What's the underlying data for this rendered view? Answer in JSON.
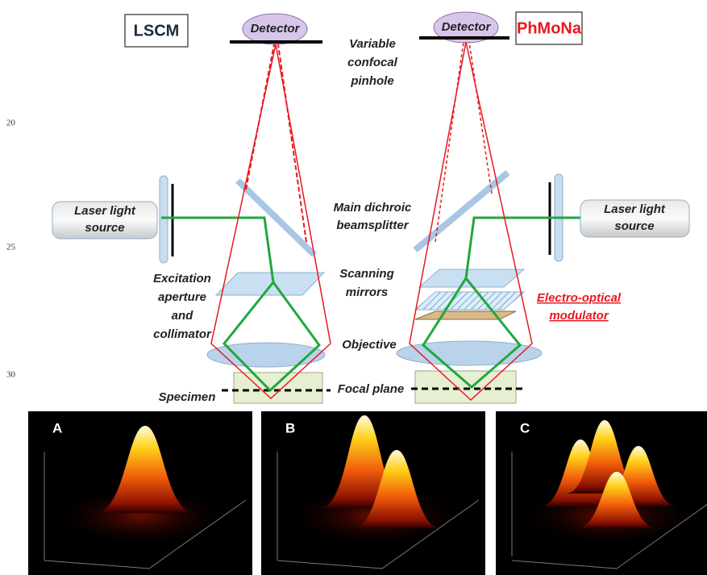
{
  "line_numbers": [
    "20",
    "25",
    "30"
  ],
  "diagram": {
    "left": {
      "title": "LSCM",
      "detector": "Detector",
      "laser": [
        "Laser light",
        "source"
      ]
    },
    "right": {
      "title": "PhMoNa",
      "detector": "Detector",
      "laser": [
        "Laser light",
        "source"
      ]
    },
    "pinhole": [
      "Variable",
      "confocal",
      "pinhole"
    ],
    "beamsplitter": [
      "Main dichroic",
      "beamsplitter"
    ],
    "scanning": [
      "Scanning",
      "mirrors"
    ],
    "excitation": [
      "Excitation",
      "aperture",
      "and",
      "collimator"
    ],
    "modulator": [
      "Electro-optical",
      "modulator"
    ],
    "objective": "Objective",
    "focal_plane": "Focal plane",
    "specimen": "Specimen"
  },
  "panels": [
    {
      "label": "A"
    },
    {
      "label": "B"
    },
    {
      "label": "C"
    }
  ]
}
